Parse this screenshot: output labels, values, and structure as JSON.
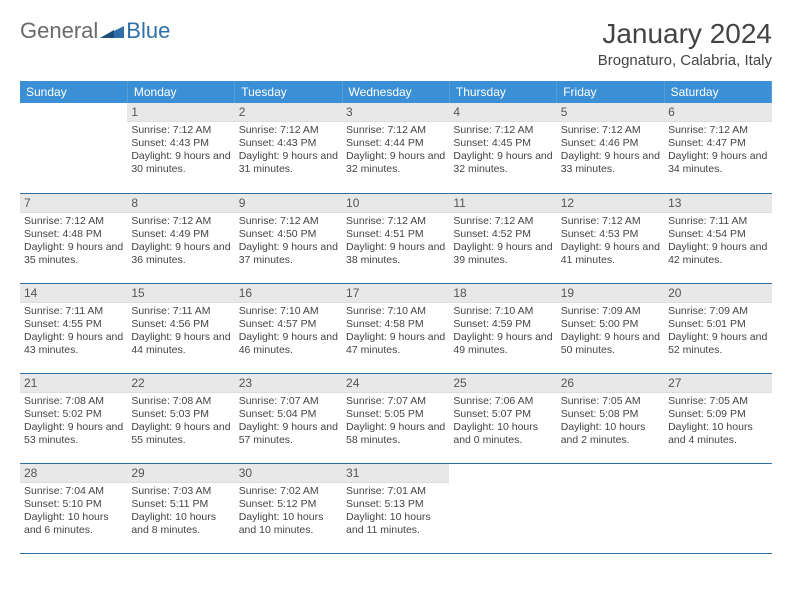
{
  "logo": {
    "part1": "General",
    "part2": "Blue"
  },
  "title": "January 2024",
  "location": "Brognaturo, Calabria, Italy",
  "colors": {
    "header_bg": "#3b8fd4",
    "header_text": "#ffffff",
    "daynum_bg": "#e8e8e8",
    "border": "#2f6fa8",
    "text": "#444444"
  },
  "weekdays": [
    "Sunday",
    "Monday",
    "Tuesday",
    "Wednesday",
    "Thursday",
    "Friday",
    "Saturday"
  ],
  "first_weekday_index": 1,
  "days": [
    {
      "n": 1,
      "sunrise": "7:12 AM",
      "sunset": "4:43 PM",
      "daylight": "9 hours and 30 minutes."
    },
    {
      "n": 2,
      "sunrise": "7:12 AM",
      "sunset": "4:43 PM",
      "daylight": "9 hours and 31 minutes."
    },
    {
      "n": 3,
      "sunrise": "7:12 AM",
      "sunset": "4:44 PM",
      "daylight": "9 hours and 32 minutes."
    },
    {
      "n": 4,
      "sunrise": "7:12 AM",
      "sunset": "4:45 PM",
      "daylight": "9 hours and 32 minutes."
    },
    {
      "n": 5,
      "sunrise": "7:12 AM",
      "sunset": "4:46 PM",
      "daylight": "9 hours and 33 minutes."
    },
    {
      "n": 6,
      "sunrise": "7:12 AM",
      "sunset": "4:47 PM",
      "daylight": "9 hours and 34 minutes."
    },
    {
      "n": 7,
      "sunrise": "7:12 AM",
      "sunset": "4:48 PM",
      "daylight": "9 hours and 35 minutes."
    },
    {
      "n": 8,
      "sunrise": "7:12 AM",
      "sunset": "4:49 PM",
      "daylight": "9 hours and 36 minutes."
    },
    {
      "n": 9,
      "sunrise": "7:12 AM",
      "sunset": "4:50 PM",
      "daylight": "9 hours and 37 minutes."
    },
    {
      "n": 10,
      "sunrise": "7:12 AM",
      "sunset": "4:51 PM",
      "daylight": "9 hours and 38 minutes."
    },
    {
      "n": 11,
      "sunrise": "7:12 AM",
      "sunset": "4:52 PM",
      "daylight": "9 hours and 39 minutes."
    },
    {
      "n": 12,
      "sunrise": "7:12 AM",
      "sunset": "4:53 PM",
      "daylight": "9 hours and 41 minutes."
    },
    {
      "n": 13,
      "sunrise": "7:11 AM",
      "sunset": "4:54 PM",
      "daylight": "9 hours and 42 minutes."
    },
    {
      "n": 14,
      "sunrise": "7:11 AM",
      "sunset": "4:55 PM",
      "daylight": "9 hours and 43 minutes."
    },
    {
      "n": 15,
      "sunrise": "7:11 AM",
      "sunset": "4:56 PM",
      "daylight": "9 hours and 44 minutes."
    },
    {
      "n": 16,
      "sunrise": "7:10 AM",
      "sunset": "4:57 PM",
      "daylight": "9 hours and 46 minutes."
    },
    {
      "n": 17,
      "sunrise": "7:10 AM",
      "sunset": "4:58 PM",
      "daylight": "9 hours and 47 minutes."
    },
    {
      "n": 18,
      "sunrise": "7:10 AM",
      "sunset": "4:59 PM",
      "daylight": "9 hours and 49 minutes."
    },
    {
      "n": 19,
      "sunrise": "7:09 AM",
      "sunset": "5:00 PM",
      "daylight": "9 hours and 50 minutes."
    },
    {
      "n": 20,
      "sunrise": "7:09 AM",
      "sunset": "5:01 PM",
      "daylight": "9 hours and 52 minutes."
    },
    {
      "n": 21,
      "sunrise": "7:08 AM",
      "sunset": "5:02 PM",
      "daylight": "9 hours and 53 minutes."
    },
    {
      "n": 22,
      "sunrise": "7:08 AM",
      "sunset": "5:03 PM",
      "daylight": "9 hours and 55 minutes."
    },
    {
      "n": 23,
      "sunrise": "7:07 AM",
      "sunset": "5:04 PM",
      "daylight": "9 hours and 57 minutes."
    },
    {
      "n": 24,
      "sunrise": "7:07 AM",
      "sunset": "5:05 PM",
      "daylight": "9 hours and 58 minutes."
    },
    {
      "n": 25,
      "sunrise": "7:06 AM",
      "sunset": "5:07 PM",
      "daylight": "10 hours and 0 minutes."
    },
    {
      "n": 26,
      "sunrise": "7:05 AM",
      "sunset": "5:08 PM",
      "daylight": "10 hours and 2 minutes."
    },
    {
      "n": 27,
      "sunrise": "7:05 AM",
      "sunset": "5:09 PM",
      "daylight": "10 hours and 4 minutes."
    },
    {
      "n": 28,
      "sunrise": "7:04 AM",
      "sunset": "5:10 PM",
      "daylight": "10 hours and 6 minutes."
    },
    {
      "n": 29,
      "sunrise": "7:03 AM",
      "sunset": "5:11 PM",
      "daylight": "10 hours and 8 minutes."
    },
    {
      "n": 30,
      "sunrise": "7:02 AM",
      "sunset": "5:12 PM",
      "daylight": "10 hours and 10 minutes."
    },
    {
      "n": 31,
      "sunrise": "7:01 AM",
      "sunset": "5:13 PM",
      "daylight": "10 hours and 11 minutes."
    }
  ],
  "labels": {
    "sunrise": "Sunrise:",
    "sunset": "Sunset:",
    "daylight": "Daylight:"
  }
}
